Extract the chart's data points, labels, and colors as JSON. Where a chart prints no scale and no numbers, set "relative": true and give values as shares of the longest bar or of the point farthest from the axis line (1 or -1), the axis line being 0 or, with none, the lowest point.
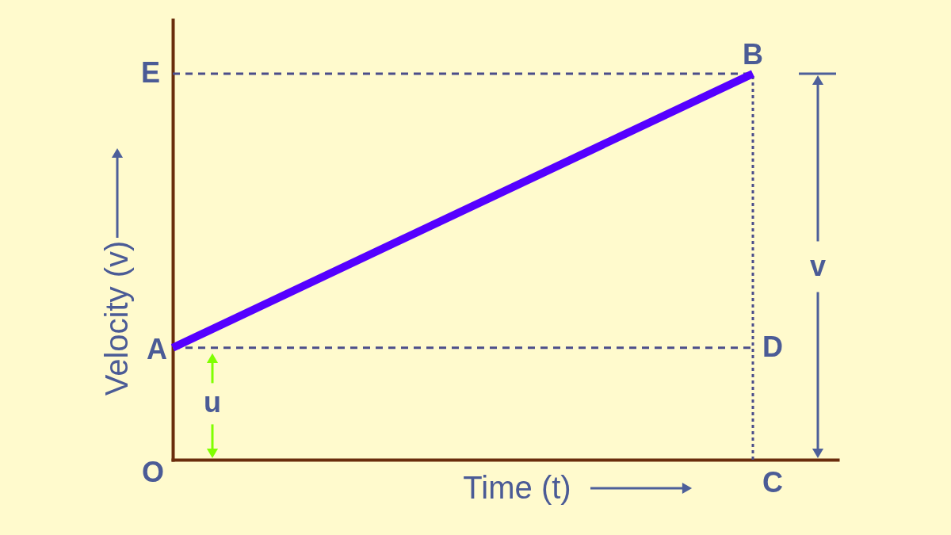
{
  "chart_data": {
    "type": "line",
    "xlabel": "Time (t)",
    "ylabel": "Velocity (v)",
    "categories": [
      null,
      null
    ],
    "relative": true,
    "series": [
      {
        "color": "#5500ff",
        "values": [
          0.29,
          1
        ]
      }
    ],
    "ref_lines": [
      {
        "axis": "y",
        "value": 1,
        "line_style": "dashed",
        "color": "#4b4d8a"
      },
      {
        "axis": "y",
        "value": 0.29,
        "line_style": "dashed",
        "color": "#4b4d8a"
      },
      {
        "axis": "x",
        "value": null,
        "line_style": "dotted",
        "color": "#4b4d8a"
      }
    ],
    "annotations": [
      "E",
      "A",
      "O",
      "B",
      "D",
      "C",
      "u",
      "v"
    ]
  }
}
